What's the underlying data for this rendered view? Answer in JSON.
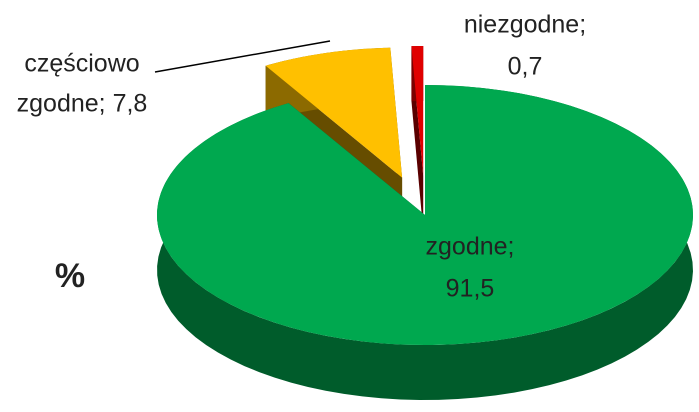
{
  "chart_data": {
    "type": "pie",
    "label": "%",
    "values": [
      91.5,
      7.8,
      0.7
    ],
    "data_labels": [
      [
        "zgodne;",
        "91,5"
      ],
      [
        "częściowo",
        "zgodne; 7,8"
      ],
      [
        "niezgodne;",
        "0,7"
      ]
    ],
    "colors": [
      "#00a84f",
      "#ffc000",
      "#e00000"
    ],
    "explode": [
      0,
      0.3,
      0.3
    ]
  }
}
